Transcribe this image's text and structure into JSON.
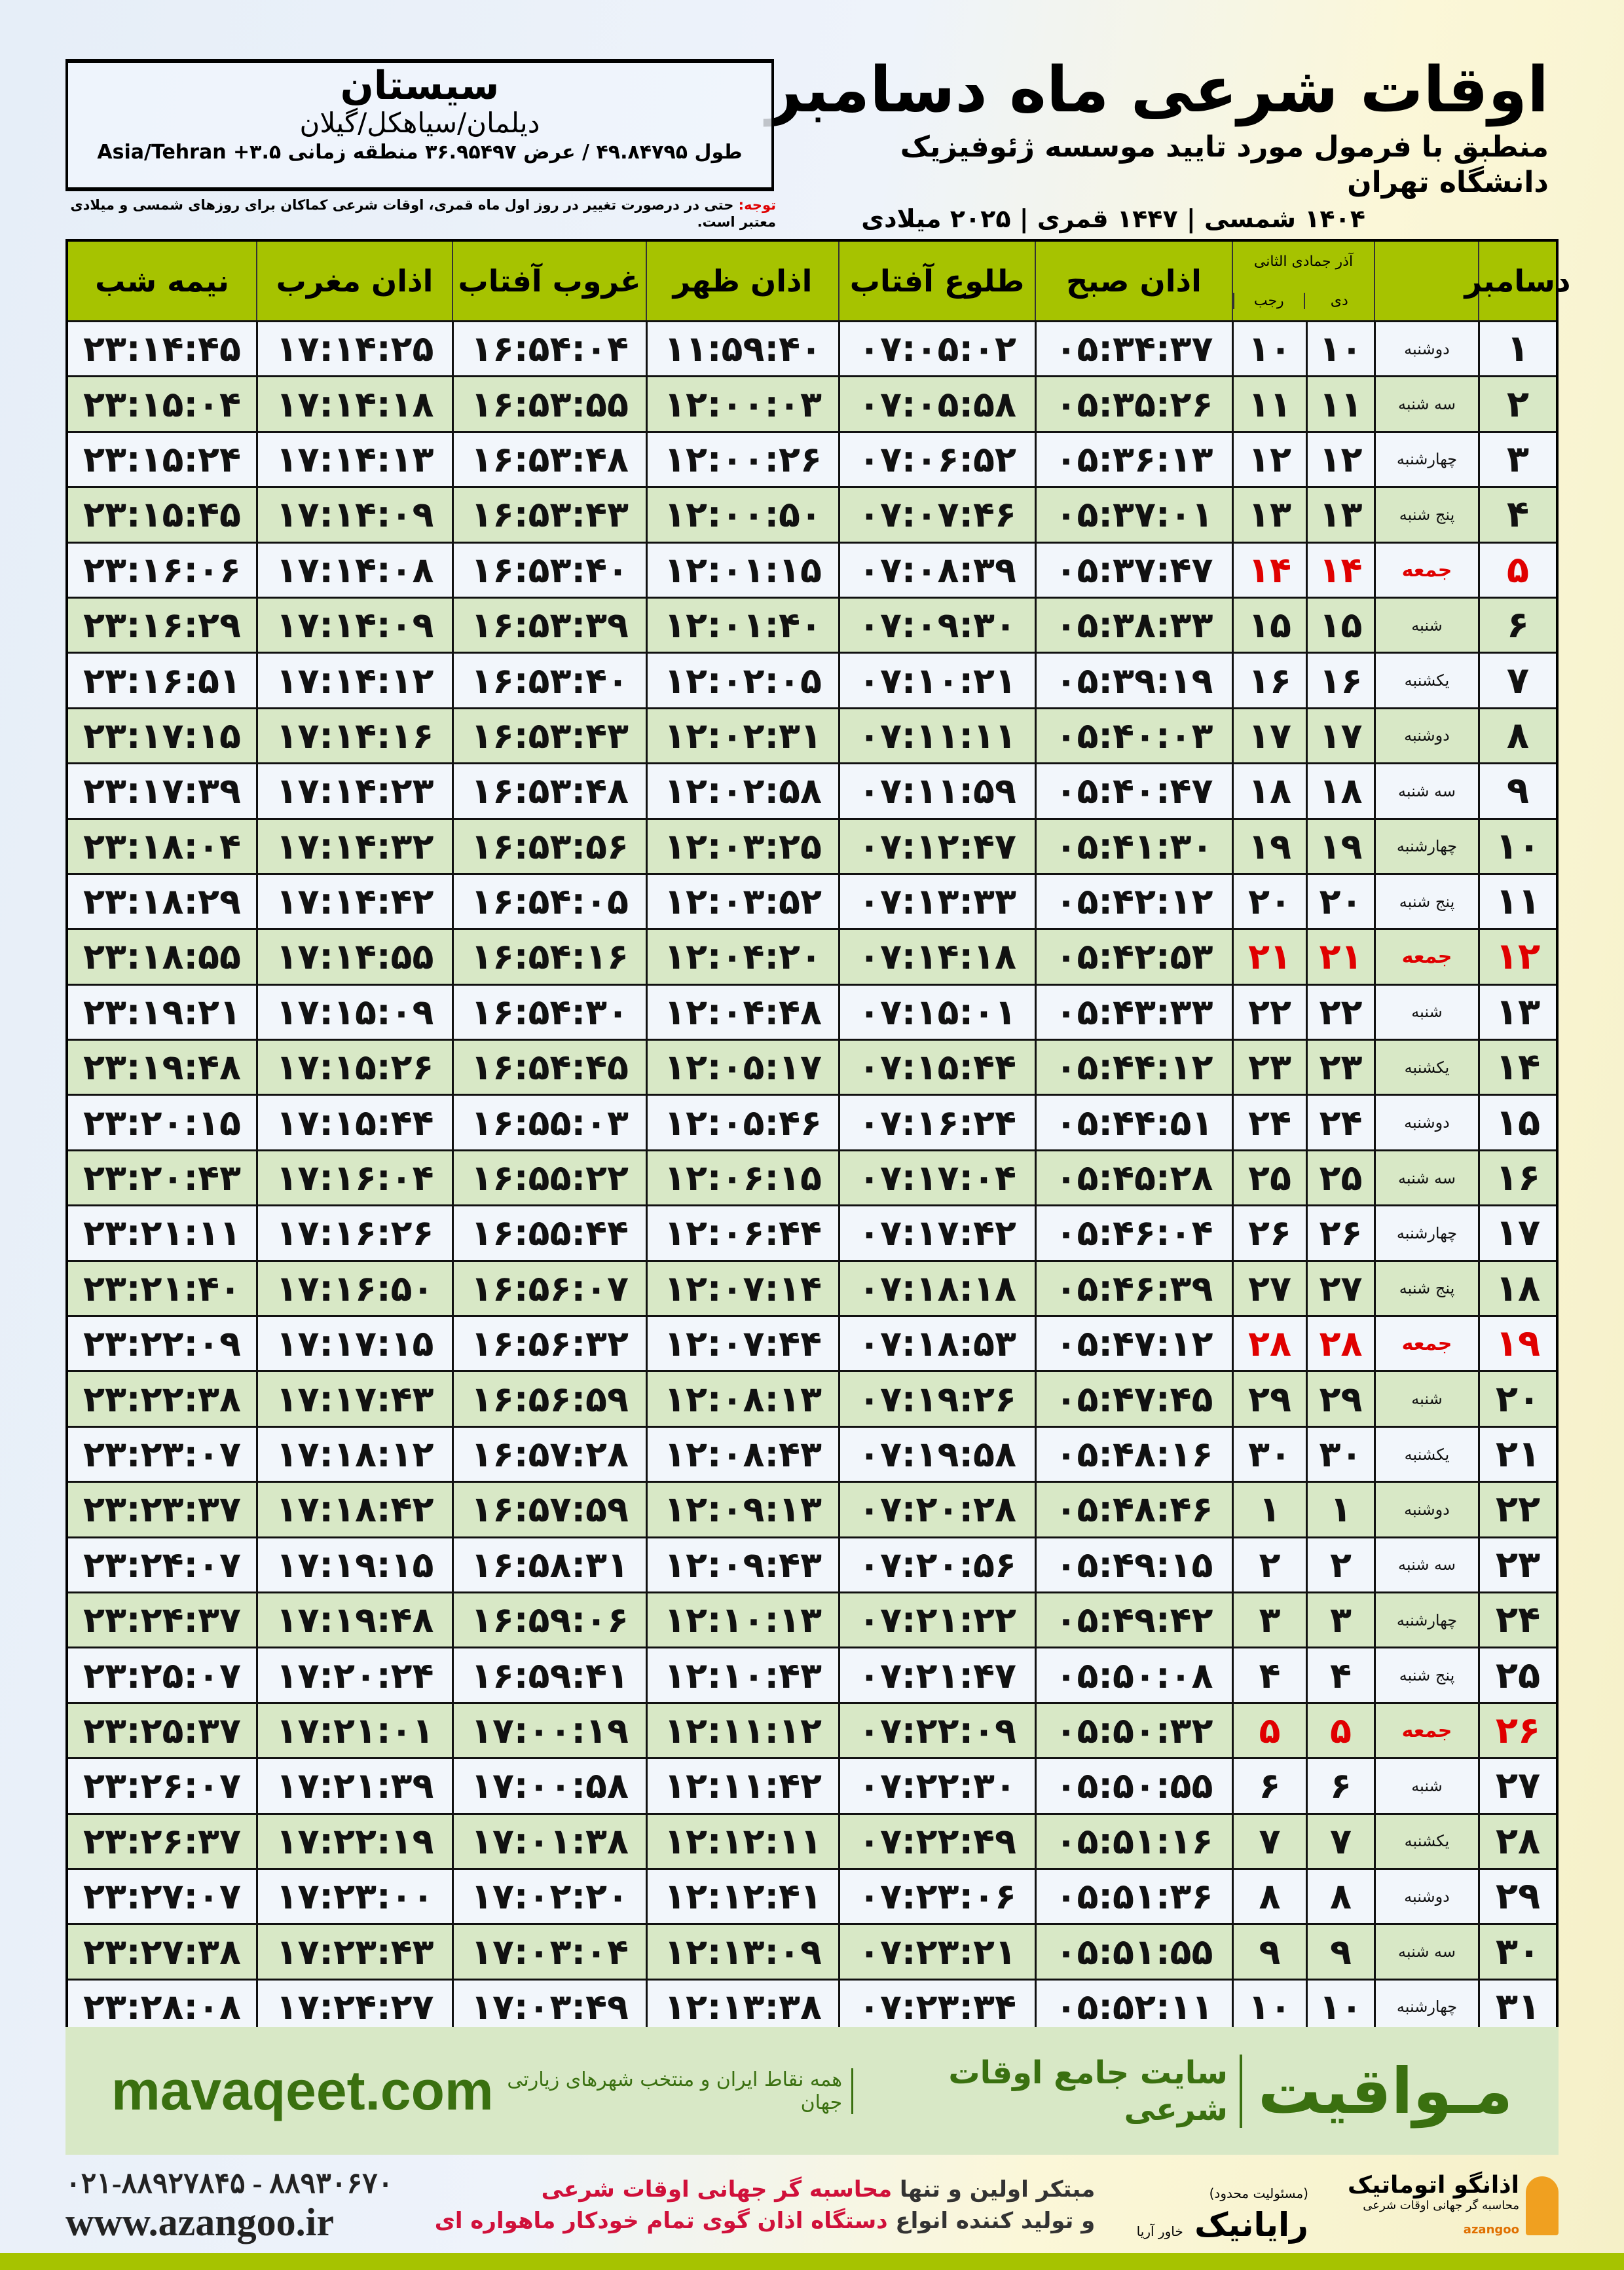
{
  "header": {
    "title": "اوقات شرعی ماه دسامبر",
    "subtitle": "منطبق با فرمول مورد تایید موسسه ژئوفیزیک دانشگاه تهران",
    "years": "۱۴۰۴ شمسی | ۱۴۴۷ قمری | ۲۰۲۵ میلادی"
  },
  "location": {
    "city": "سیستان",
    "region": "دیلمان/سیاهکل/گیلان",
    "coords": "طول ۴۹.۸۴۷۹۵ / عرض ۳۶.۹۵۴۹۷ منطقه زمانی ۳.۵+ Asia/Tehran"
  },
  "note": {
    "label": "توجه:",
    "text": " حتی در درصورت تغییر در روز اول ماه قمری، اوقات شرعی کماکان برای روزهای شمسی و میلادی معتبر است."
  },
  "colors": {
    "header_green": "#a6c300",
    "row_green": "#d8e8c6",
    "friday_red": "#e00000",
    "brand_green": "#3a7010"
  },
  "table": {
    "headers": {
      "day": "دسامبر",
      "hijri_top": "آذر  جمادی الثانی",
      "dey": "دی",
      "rajab": "رجب",
      "fajr": "اذان صبح",
      "sunrise": "طلوع آفتاب",
      "dhuhr": "اذان ظهر",
      "sunset": "غروب آفتاب",
      "maghrib": "اذان مغرب",
      "midnight": "نیمه شب"
    },
    "rows": [
      {
        "day": "۱",
        "weekday": "دوشنبه",
        "dey": "۱۰",
        "rajab": "۱۰",
        "fajr": "۰۵:۳۴:۳۷",
        "sunrise": "۰۷:۰۵:۰۲",
        "dhuhr": "۱۱:۵۹:۴۰",
        "sunset": "۱۶:۵۴:۰۴",
        "maghrib": "۱۷:۱۴:۲۵",
        "midnight": "۲۳:۱۴:۴۵"
      },
      {
        "day": "۲",
        "weekday": "سه شنبه",
        "dey": "۱۱",
        "rajab": "۱۱",
        "fajr": "۰۵:۳۵:۲۶",
        "sunrise": "۰۷:۰۵:۵۸",
        "dhuhr": "۱۲:۰۰:۰۳",
        "sunset": "۱۶:۵۳:۵۵",
        "maghrib": "۱۷:۱۴:۱۸",
        "midnight": "۲۳:۱۵:۰۴"
      },
      {
        "day": "۳",
        "weekday": "چهارشنبه",
        "dey": "۱۲",
        "rajab": "۱۲",
        "fajr": "۰۵:۳۶:۱۳",
        "sunrise": "۰۷:۰۶:۵۲",
        "dhuhr": "۱۲:۰۰:۲۶",
        "sunset": "۱۶:۵۳:۴۸",
        "maghrib": "۱۷:۱۴:۱۳",
        "midnight": "۲۳:۱۵:۲۴"
      },
      {
        "day": "۴",
        "weekday": "پنج شنبه",
        "dey": "۱۳",
        "rajab": "۱۳",
        "fajr": "۰۵:۳۷:۰۱",
        "sunrise": "۰۷:۰۷:۴۶",
        "dhuhr": "۱۲:۰۰:۵۰",
        "sunset": "۱۶:۵۳:۴۳",
        "maghrib": "۱۷:۱۴:۰۹",
        "midnight": "۲۳:۱۵:۴۵"
      },
      {
        "day": "۵",
        "weekday": "جمعه",
        "dey": "۱۴",
        "rajab": "۱۴",
        "fajr": "۰۵:۳۷:۴۷",
        "sunrise": "۰۷:۰۸:۳۹",
        "dhuhr": "۱۲:۰۱:۱۵",
        "sunset": "۱۶:۵۳:۴۰",
        "maghrib": "۱۷:۱۴:۰۸",
        "midnight": "۲۳:۱۶:۰۶"
      },
      {
        "day": "۶",
        "weekday": "شنبه",
        "dey": "۱۵",
        "rajab": "۱۵",
        "fajr": "۰۵:۳۸:۳۳",
        "sunrise": "۰۷:۰۹:۳۰",
        "dhuhr": "۱۲:۰۱:۴۰",
        "sunset": "۱۶:۵۳:۳۹",
        "maghrib": "۱۷:۱۴:۰۹",
        "midnight": "۲۳:۱۶:۲۹"
      },
      {
        "day": "۷",
        "weekday": "یکشنبه",
        "dey": "۱۶",
        "rajab": "۱۶",
        "fajr": "۰۵:۳۹:۱۹",
        "sunrise": "۰۷:۱۰:۲۱",
        "dhuhr": "۱۲:۰۲:۰۵",
        "sunset": "۱۶:۵۳:۴۰",
        "maghrib": "۱۷:۱۴:۱۲",
        "midnight": "۲۳:۱۶:۵۱"
      },
      {
        "day": "۸",
        "weekday": "دوشنبه",
        "dey": "۱۷",
        "rajab": "۱۷",
        "fajr": "۰۵:۴۰:۰۳",
        "sunrise": "۰۷:۱۱:۱۱",
        "dhuhr": "۱۲:۰۲:۳۱",
        "sunset": "۱۶:۵۳:۴۳",
        "maghrib": "۱۷:۱۴:۱۶",
        "midnight": "۲۳:۱۷:۱۵"
      },
      {
        "day": "۹",
        "weekday": "سه شنبه",
        "dey": "۱۸",
        "rajab": "۱۸",
        "fajr": "۰۵:۴۰:۴۷",
        "sunrise": "۰۷:۱۱:۵۹",
        "dhuhr": "۱۲:۰۲:۵۸",
        "sunset": "۱۶:۵۳:۴۸",
        "maghrib": "۱۷:۱۴:۲۳",
        "midnight": "۲۳:۱۷:۳۹"
      },
      {
        "day": "۱۰",
        "weekday": "چهارشنبه",
        "dey": "۱۹",
        "rajab": "۱۹",
        "fajr": "۰۵:۴۱:۳۰",
        "sunrise": "۰۷:۱۲:۴۷",
        "dhuhr": "۱۲:۰۳:۲۵",
        "sunset": "۱۶:۵۳:۵۶",
        "maghrib": "۱۷:۱۴:۳۲",
        "midnight": "۲۳:۱۸:۰۴"
      },
      {
        "day": "۱۱",
        "weekday": "پنج شنبه",
        "dey": "۲۰",
        "rajab": "۲۰",
        "fajr": "۰۵:۴۲:۱۲",
        "sunrise": "۰۷:۱۳:۳۳",
        "dhuhr": "۱۲:۰۳:۵۲",
        "sunset": "۱۶:۵۴:۰۵",
        "maghrib": "۱۷:۱۴:۴۲",
        "midnight": "۲۳:۱۸:۲۹"
      },
      {
        "day": "۱۲",
        "weekday": "جمعه",
        "dey": "۲۱",
        "rajab": "۲۱",
        "fajr": "۰۵:۴۲:۵۳",
        "sunrise": "۰۷:۱۴:۱۸",
        "dhuhr": "۱۲:۰۴:۲۰",
        "sunset": "۱۶:۵۴:۱۶",
        "maghrib": "۱۷:۱۴:۵۵",
        "midnight": "۲۳:۱۸:۵۵"
      },
      {
        "day": "۱۳",
        "weekday": "شنبه",
        "dey": "۲۲",
        "rajab": "۲۲",
        "fajr": "۰۵:۴۳:۳۳",
        "sunrise": "۰۷:۱۵:۰۱",
        "dhuhr": "۱۲:۰۴:۴۸",
        "sunset": "۱۶:۵۴:۳۰",
        "maghrib": "۱۷:۱۵:۰۹",
        "midnight": "۲۳:۱۹:۲۱"
      },
      {
        "day": "۱۴",
        "weekday": "یکشنبه",
        "dey": "۲۳",
        "rajab": "۲۳",
        "fajr": "۰۵:۴۴:۱۲",
        "sunrise": "۰۷:۱۵:۴۴",
        "dhuhr": "۱۲:۰۵:۱۷",
        "sunset": "۱۶:۵۴:۴۵",
        "maghrib": "۱۷:۱۵:۲۶",
        "midnight": "۲۳:۱۹:۴۸"
      },
      {
        "day": "۱۵",
        "weekday": "دوشنبه",
        "dey": "۲۴",
        "rajab": "۲۴",
        "fajr": "۰۵:۴۴:۵۱",
        "sunrise": "۰۷:۱۶:۲۴",
        "dhuhr": "۱۲:۰۵:۴۶",
        "sunset": "۱۶:۵۵:۰۳",
        "maghrib": "۱۷:۱۵:۴۴",
        "midnight": "۲۳:۲۰:۱۵"
      },
      {
        "day": "۱۶",
        "weekday": "سه شنبه",
        "dey": "۲۵",
        "rajab": "۲۵",
        "fajr": "۰۵:۴۵:۲۸",
        "sunrise": "۰۷:۱۷:۰۴",
        "dhuhr": "۱۲:۰۶:۱۵",
        "sunset": "۱۶:۵۵:۲۲",
        "maghrib": "۱۷:۱۶:۰۴",
        "midnight": "۲۳:۲۰:۴۳"
      },
      {
        "day": "۱۷",
        "weekday": "چهارشنبه",
        "dey": "۲۶",
        "rajab": "۲۶",
        "fajr": "۰۵:۴۶:۰۴",
        "sunrise": "۰۷:۱۷:۴۲",
        "dhuhr": "۱۲:۰۶:۴۴",
        "sunset": "۱۶:۵۵:۴۴",
        "maghrib": "۱۷:۱۶:۲۶",
        "midnight": "۲۳:۲۱:۱۱"
      },
      {
        "day": "۱۸",
        "weekday": "پنج شنبه",
        "dey": "۲۷",
        "rajab": "۲۷",
        "fajr": "۰۵:۴۶:۳۹",
        "sunrise": "۰۷:۱۸:۱۸",
        "dhuhr": "۱۲:۰۷:۱۴",
        "sunset": "۱۶:۵۶:۰۷",
        "maghrib": "۱۷:۱۶:۵۰",
        "midnight": "۲۳:۲۱:۴۰"
      },
      {
        "day": "۱۹",
        "weekday": "جمعه",
        "dey": "۲۸",
        "rajab": "۲۸",
        "fajr": "۰۵:۴۷:۱۲",
        "sunrise": "۰۷:۱۸:۵۳",
        "dhuhr": "۱۲:۰۷:۴۴",
        "sunset": "۱۶:۵۶:۳۲",
        "maghrib": "۱۷:۱۷:۱۵",
        "midnight": "۲۳:۲۲:۰۹"
      },
      {
        "day": "۲۰",
        "weekday": "شنبه",
        "dey": "۲۹",
        "rajab": "۲۹",
        "fajr": "۰۵:۴۷:۴۵",
        "sunrise": "۰۷:۱۹:۲۶",
        "dhuhr": "۱۲:۰۸:۱۳",
        "sunset": "۱۶:۵۶:۵۹",
        "maghrib": "۱۷:۱۷:۴۳",
        "midnight": "۲۳:۲۲:۳۸"
      },
      {
        "day": "۲۱",
        "weekday": "یکشنبه",
        "dey": "۳۰",
        "rajab": "۳۰",
        "fajr": "۰۵:۴۸:۱۶",
        "sunrise": "۰۷:۱۹:۵۸",
        "dhuhr": "۱۲:۰۸:۴۳",
        "sunset": "۱۶:۵۷:۲۸",
        "maghrib": "۱۷:۱۸:۱۲",
        "midnight": "۲۳:۲۳:۰۷"
      },
      {
        "day": "۲۲",
        "weekday": "دوشنبه",
        "dey": "۱",
        "rajab": "۱",
        "fajr": "۰۵:۴۸:۴۶",
        "sunrise": "۰۷:۲۰:۲۸",
        "dhuhr": "۱۲:۰۹:۱۳",
        "sunset": "۱۶:۵۷:۵۹",
        "maghrib": "۱۷:۱۸:۴۲",
        "midnight": "۲۳:۲۳:۳۷"
      },
      {
        "day": "۲۳",
        "weekday": "سه شنبه",
        "dey": "۲",
        "rajab": "۲",
        "fajr": "۰۵:۴۹:۱۵",
        "sunrise": "۰۷:۲۰:۵۶",
        "dhuhr": "۱۲:۰۹:۴۳",
        "sunset": "۱۶:۵۸:۳۱",
        "maghrib": "۱۷:۱۹:۱۵",
        "midnight": "۲۳:۲۴:۰۷"
      },
      {
        "day": "۲۴",
        "weekday": "چهارشنبه",
        "dey": "۳",
        "rajab": "۳",
        "fajr": "۰۵:۴۹:۴۲",
        "sunrise": "۰۷:۲۱:۲۲",
        "dhuhr": "۱۲:۱۰:۱۳",
        "sunset": "۱۶:۵۹:۰۶",
        "maghrib": "۱۷:۱۹:۴۸",
        "midnight": "۲۳:۲۴:۳۷"
      },
      {
        "day": "۲۵",
        "weekday": "پنج شنبه",
        "dey": "۴",
        "rajab": "۴",
        "fajr": "۰۵:۵۰:۰۸",
        "sunrise": "۰۷:۲۱:۴۷",
        "dhuhr": "۱۲:۱۰:۴۳",
        "sunset": "۱۶:۵۹:۴۱",
        "maghrib": "۱۷:۲۰:۲۴",
        "midnight": "۲۳:۲۵:۰۷"
      },
      {
        "day": "۲۶",
        "weekday": "جمعه",
        "dey": "۵",
        "rajab": "۵",
        "fajr": "۰۵:۵۰:۳۲",
        "sunrise": "۰۷:۲۲:۰۹",
        "dhuhr": "۱۲:۱۱:۱۲",
        "sunset": "۱۷:۰۰:۱۹",
        "maghrib": "۱۷:۲۱:۰۱",
        "midnight": "۲۳:۲۵:۳۷"
      },
      {
        "day": "۲۷",
        "weekday": "شنبه",
        "dey": "۶",
        "rajab": "۶",
        "fajr": "۰۵:۵۰:۵۵",
        "sunrise": "۰۷:۲۲:۳۰",
        "dhuhr": "۱۲:۱۱:۴۲",
        "sunset": "۱۷:۰۰:۵۸",
        "maghrib": "۱۷:۲۱:۳۹",
        "midnight": "۲۳:۲۶:۰۷"
      },
      {
        "day": "۲۸",
        "weekday": "یکشنبه",
        "dey": "۷",
        "rajab": "۷",
        "fajr": "۰۵:۵۱:۱۶",
        "sunrise": "۰۷:۲۲:۴۹",
        "dhuhr": "۱۲:۱۲:۱۱",
        "sunset": "۱۷:۰۱:۳۸",
        "maghrib": "۱۷:۲۲:۱۹",
        "midnight": "۲۳:۲۶:۳۷"
      },
      {
        "day": "۲۹",
        "weekday": "دوشنبه",
        "dey": "۸",
        "rajab": "۸",
        "fajr": "۰۵:۵۱:۳۶",
        "sunrise": "۰۷:۲۳:۰۶",
        "dhuhr": "۱۲:۱۲:۴۱",
        "sunset": "۱۷:۰۲:۲۰",
        "maghrib": "۱۷:۲۳:۰۰",
        "midnight": "۲۳:۲۷:۰۷"
      },
      {
        "day": "۳۰",
        "weekday": "سه شنبه",
        "dey": "۹",
        "rajab": "۹",
        "fajr": "۰۵:۵۱:۵۵",
        "sunrise": "۰۷:۲۳:۲۱",
        "dhuhr": "۱۲:۱۳:۰۹",
        "sunset": "۱۷:۰۳:۰۴",
        "maghrib": "۱۷:۲۳:۴۳",
        "midnight": "۲۳:۲۷:۳۸"
      },
      {
        "day": "۳۱",
        "weekday": "چهارشنبه",
        "dey": "۱۰",
        "rajab": "۱۰",
        "fajr": "۰۵:۵۲:۱۱",
        "sunrise": "۰۷:۲۳:۳۴",
        "dhuhr": "۱۲:۱۳:۳۸",
        "sunset": "۱۷:۰۳:۴۹",
        "maghrib": "۱۷:۲۴:۲۷",
        "midnight": "۲۳:۲۸:۰۸"
      }
    ]
  },
  "banner": {
    "brand": "مـواقیت",
    "tagline": "سایت جامع اوقات شرعی",
    "tagline2": "همه نقاط ایران و منتخب شهرهای زیارتی جهان",
    "site": "mavaqeet.com"
  },
  "footer": {
    "logo1_name": "اذانگو اتوماتیک",
    "logo1_sub": "محاسبه گر جهانی اوقات شرعی",
    "logo1_latin": "azangoo",
    "logo2_name": "رایانیک",
    "logo2_sub": "خاور آریا",
    "logo2_note": "(مسئولیت محدود)",
    "promo1_a": "مبتکر اولین و تنها ",
    "promo1_b": "محاسبه گر جهانی اوقات شرعی",
    "promo2_a": "و تولید کننده انواع ",
    "promo2_b": "دستگاه اذان گوی تمام خودکار ماهواره ای",
    "phone": "۰۲۱-۸۸۹۲۷۸۴۵ - ۸۸۹۳۰۶۷۰",
    "website": "www.azangoo.ir"
  }
}
